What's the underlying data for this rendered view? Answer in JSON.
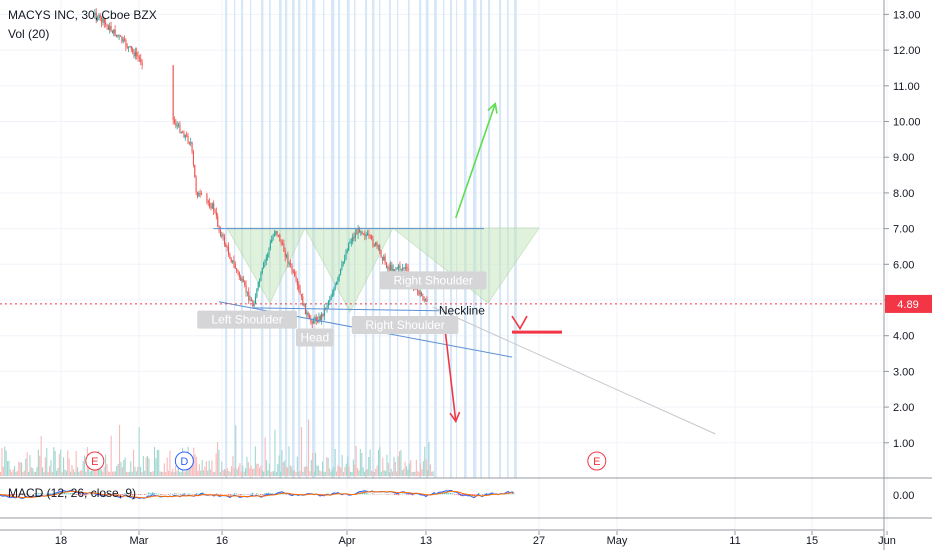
{
  "header": {
    "symbol": "MACYS INC, 30, Cboe BZX",
    "volume_label": "Vol (20)",
    "macd_label": "MACD (12, 26, close, 9)"
  },
  "price_label": {
    "value": "4.89",
    "color": "#f23645"
  },
  "macd_value_tick": "0.00",
  "chart_data": [
    {
      "type": "candlestick",
      "title": "MACYS INC, 30, Cboe BZX",
      "ylim": [
        0.5,
        13.3
      ],
      "y_ticks": [
        "13.00",
        "12.00",
        "11.00",
        "10.00",
        "9.00",
        "8.00",
        "7.00",
        "6.00",
        "5.00",
        "4.00",
        "3.00",
        "2.00",
        "1.00"
      ],
      "x_ticks": [
        "18",
        "Mar",
        "16",
        "Apr",
        "13",
        "27",
        "May",
        "11",
        "15",
        "Jun"
      ],
      "current_price": 4.89,
      "price_path": [
        {
          "x": "Feb 24",
          "y": 13.0
        },
        {
          "x": "Feb 28",
          "y": 12.4
        },
        {
          "x": "Mar 05",
          "y": 11.4
        },
        {
          "x": "Mar 09",
          "y": 10.0
        },
        {
          "x": "Mar 12",
          "y": 9.4
        },
        {
          "x": "Mar 13",
          "y": 8.0
        },
        {
          "x": "Mar 16",
          "y": 7.6
        },
        {
          "x": "Mar 17",
          "y": 7.0
        },
        {
          "x": "Mar 19",
          "y": 6.2
        },
        {
          "x": "Mar 23",
          "y": 4.85
        },
        {
          "x": "Mar 25",
          "y": 6.0
        },
        {
          "x": "Mar 27",
          "y": 7.0
        },
        {
          "x": "Mar 30",
          "y": 5.8
        },
        {
          "x": "Apr 01",
          "y": 4.85
        },
        {
          "x": "Apr 02",
          "y": 4.4
        },
        {
          "x": "Apr 04",
          "y": 4.5
        },
        {
          "x": "Apr 07",
          "y": 5.5
        },
        {
          "x": "Apr 09",
          "y": 6.6
        },
        {
          "x": "Apr 11",
          "y": 7.0
        },
        {
          "x": "Apr 14",
          "y": 6.5
        },
        {
          "x": "Apr 16",
          "y": 5.9
        },
        {
          "x": "Apr 19",
          "y": 5.9
        },
        {
          "x": "Apr 21",
          "y": 5.3
        },
        {
          "x": "Apr 23",
          "y": 4.89
        }
      ],
      "annotations": [
        {
          "label": "Left Shoulder",
          "x": "Mar 22",
          "y": 4.45
        },
        {
          "label": "Head",
          "x": "Apr 03",
          "y": 3.95
        },
        {
          "label": "Right Shoulder",
          "x": "Apr 24",
          "y": 5.55
        },
        {
          "label": "Right Shoulder",
          "x": "Apr 19",
          "y": 4.3
        },
        {
          "label": "Neckline",
          "x": "Apr 25",
          "y": 4.7
        }
      ],
      "lines": [
        {
          "name": "neckline-upper",
          "from": {
            "x": "Mar 16",
            "y": 7.0
          },
          "to": {
            "x": "May 03",
            "y": 7.0
          },
          "color": "#5b8fd4"
        },
        {
          "name": "neckline-lower",
          "from": {
            "x": "Mar 23",
            "y": 4.78
          },
          "to": {
            "x": "Apr 25",
            "y": 4.7
          },
          "color": "#5b8fd4"
        },
        {
          "name": "support-trend",
          "from": {
            "x": "Mar 17",
            "y": 4.95
          },
          "to": {
            "x": "May 08",
            "y": 3.4
          },
          "color": "#5b8fd4"
        },
        {
          "name": "trend-extension",
          "from": {
            "x": "Apr 24",
            "y": 4.8
          },
          "to": {
            "x": "Jun 13",
            "y": 1.25
          },
          "color": "#c8c8cc"
        },
        {
          "name": "bullish-target",
          "from": {
            "x": "Apr 28",
            "y": 7.3
          },
          "to": {
            "x": "May 05",
            "y": 10.5
          },
          "color": "#5cde4f"
        },
        {
          "name": "bearish-target",
          "from": {
            "x": "Apr 26",
            "y": 4.3
          },
          "to": {
            "x": "Apr 28",
            "y": 1.6
          },
          "color": "#f23645"
        }
      ],
      "events": [
        {
          "label": "E",
          "x": "Feb 24"
        },
        {
          "label": "D",
          "x": "Mar 13"
        },
        {
          "label": "E",
          "x": "May 23"
        }
      ]
    },
    {
      "type": "bar",
      "title": "Vol (20)",
      "x_range": [
        "Feb 14",
        "Apr 24"
      ],
      "up_color": "#9fd7cf",
      "down_color": "#f7b9b9"
    },
    {
      "type": "line",
      "title": "MACD (12, 26, close, 9)",
      "y_ticks": [
        "0.00"
      ],
      "series": [
        {
          "name": "MACD",
          "color": "#2962ff"
        },
        {
          "name": "Signal",
          "color": "#ff6d00"
        }
      ]
    }
  ],
  "colors": {
    "up": "#26a69a",
    "down": "#ef5350",
    "pattern_fill": "#c8e6c0",
    "highlight_column": "#cfe3f6"
  }
}
